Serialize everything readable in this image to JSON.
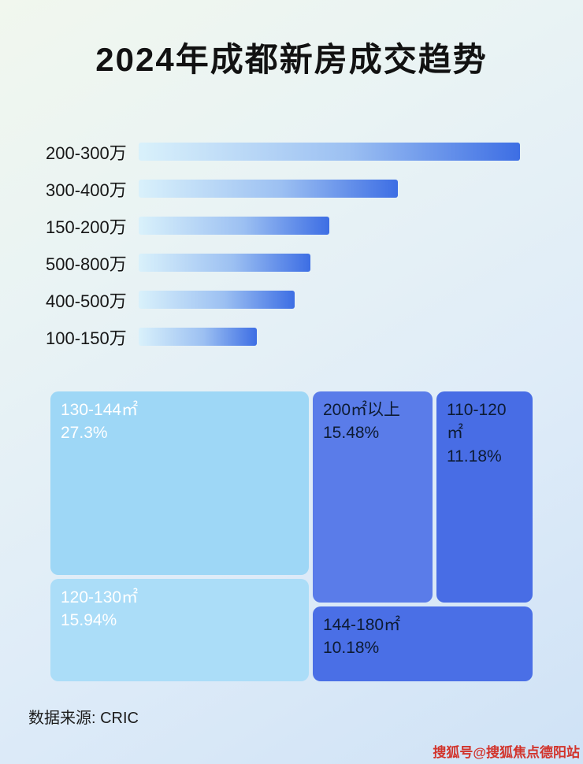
{
  "title": "2024年成都新房成交趋势",
  "footer": {
    "source_label": "数据来源: CRIC"
  },
  "watermark": "搜狐号@搜狐焦点德阳站",
  "chart_data": [
    {
      "type": "bar",
      "orientation": "horizontal",
      "title": "2024年成都新房成交趋势",
      "categories": [
        "200-300万",
        "300-400万",
        "150-200万",
        "500-800万",
        "400-500万",
        "100-150万"
      ],
      "values_relative_pct": [
        100,
        68,
        50,
        45,
        41,
        31
      ],
      "note": "bars carry no numeric labels; values estimated from bar lengths relative to the longest bar",
      "bar_gradient": [
        "#d9f1fb",
        "#3d6ee4"
      ],
      "legend": "none",
      "grid": "off"
    },
    {
      "type": "treemap",
      "items": [
        {
          "label": "130-144㎡",
          "value": 27.3,
          "value_pct": "27.3%",
          "color": "#9ed7f6"
        },
        {
          "label": "200㎡以上",
          "value": 15.48,
          "value_pct": "15.48%",
          "color": "#5a7ce9"
        },
        {
          "label": "120-130㎡",
          "value": 15.94,
          "value_pct": "15.94%",
          "color": "#abddf8"
        },
        {
          "label": "110-120㎡",
          "value": 11.18,
          "value_pct": "11.18%",
          "color": "#486de5"
        },
        {
          "label": "144-180㎡",
          "value": 10.18,
          "value_pct": "10.18%",
          "color": "#4a6fe6"
        }
      ]
    }
  ]
}
